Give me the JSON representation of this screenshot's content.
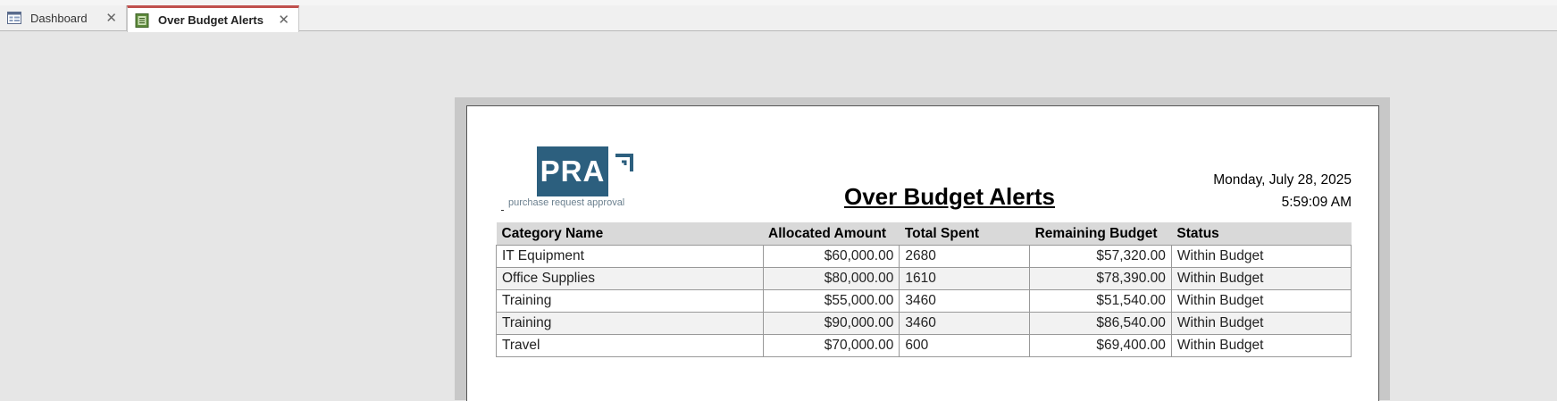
{
  "tabs": [
    {
      "label": "Dashboard",
      "icon": "dashboard-form-icon"
    },
    {
      "label": "Over Budget Alerts",
      "icon": "report-icon",
      "active": true
    }
  ],
  "logo": {
    "text": "PRA",
    "subtitle": "purchase request approval",
    "brand_color": "#2c5f7e"
  },
  "report": {
    "title": "Over Budget Alerts",
    "date": "Monday, July 28, 2025",
    "time": "5:59:09 AM",
    "columns": [
      "Category Name",
      "Allocated Amount",
      "Total Spent",
      "Remaining Budget",
      "Status"
    ],
    "rows": [
      [
        "IT Equipment",
        "$60,000.00",
        "2680",
        "$57,320.00",
        "Within Budget"
      ],
      [
        "Office Supplies",
        "$80,000.00",
        "1610",
        "$78,390.00",
        "Within Budget"
      ],
      [
        "Training",
        "$55,000.00",
        "3460",
        "$51,540.00",
        "Within Budget"
      ],
      [
        "Training",
        "$90,000.00",
        "3460",
        "$86,540.00",
        "Within Budget"
      ],
      [
        "Travel",
        "$70,000.00",
        "600",
        "$69,400.00",
        "Within Budget"
      ]
    ]
  },
  "colors": {
    "active_tab_accent": "#c0504d",
    "header_bg": "#d9d9d9"
  }
}
